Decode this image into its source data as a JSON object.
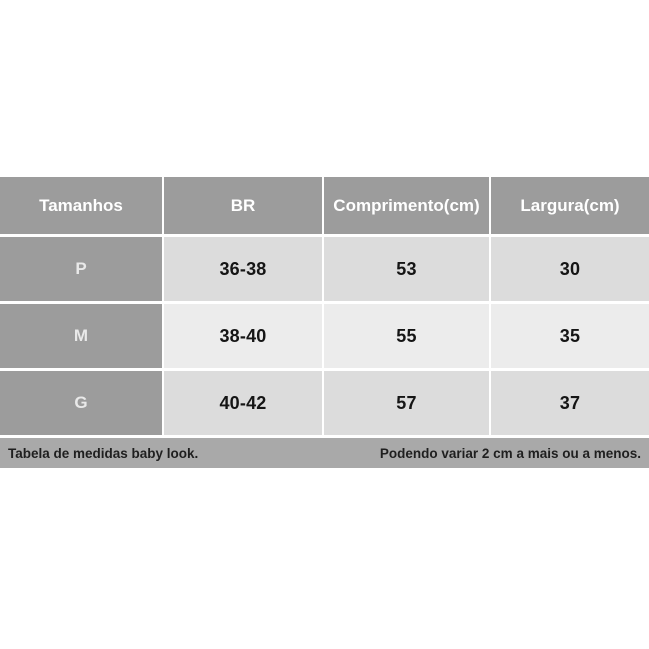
{
  "chart_data": {
    "type": "table",
    "title": "Tabela de medidas baby look",
    "columns": [
      "Tamanhos",
      "BR",
      "Comprimento(cm)",
      "Largura(cm)"
    ],
    "rows": [
      [
        "P",
        "36-38",
        "53",
        "30"
      ],
      [
        "M",
        "38-40",
        "55",
        "35"
      ],
      [
        "G",
        "40-42",
        "57",
        "37"
      ]
    ],
    "notes": {
      "left": "Tabela de medidas baby look.",
      "right": "Podendo variar 2 cm a mais ou a menos."
    }
  },
  "colors": {
    "header_bg": "#9c9c9c",
    "size_column_bg": "#9c9c9c",
    "row_light_bg": "#dcdcdc",
    "row_lighter_bg": "#ececec",
    "footer_bg": "#a9a9a9",
    "header_text": "#ffffff",
    "size_text": "#e9e9e9",
    "cell_text": "#151515",
    "footer_text": "#1f1f1f",
    "page_bg": "#ffffff"
  }
}
